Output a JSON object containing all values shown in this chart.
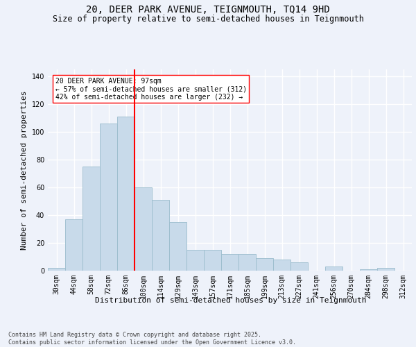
{
  "title_line1": "20, DEER PARK AVENUE, TEIGNMOUTH, TQ14 9HD",
  "title_line2": "Size of property relative to semi-detached houses in Teignmouth",
  "xlabel": "Distribution of semi-detached houses by size in Teignmouth",
  "ylabel": "Number of semi-detached properties",
  "categories": [
    "30sqm",
    "44sqm",
    "58sqm",
    "72sqm",
    "86sqm",
    "100sqm",
    "114sqm",
    "129sqm",
    "143sqm",
    "157sqm",
    "171sqm",
    "185sqm",
    "199sqm",
    "213sqm",
    "227sqm",
    "241sqm",
    "256sqm",
    "270sqm",
    "284sqm",
    "298sqm",
    "312sqm"
  ],
  "values": [
    2,
    37,
    75,
    106,
    111,
    60,
    51,
    35,
    15,
    15,
    12,
    12,
    9,
    8,
    6,
    0,
    3,
    0,
    1,
    2,
    0
  ],
  "bar_color": "#c8daea",
  "bar_edge_color": "#9abccc",
  "bar_width": 1.0,
  "vline_x": 4.5,
  "vline_color": "red",
  "vline_lw": 1.5,
  "ylim": [
    0,
    145
  ],
  "yticks": [
    0,
    20,
    40,
    60,
    80,
    100,
    120,
    140
  ],
  "annotation_text": "20 DEER PARK AVENUE: 97sqm\n← 57% of semi-detached houses are smaller (312)\n42% of semi-detached houses are larger (232) →",
  "annotation_box_color": "#ffffff",
  "annotation_box_edgecolor": "red",
  "bg_color": "#eef2fa",
  "grid_color": "#ffffff",
  "footnote": "Contains HM Land Registry data © Crown copyright and database right 2025.\nContains public sector information licensed under the Open Government Licence v3.0.",
  "title_fontsize": 10,
  "subtitle_fontsize": 8.5,
  "axis_label_fontsize": 8,
  "tick_fontsize": 7,
  "annotation_fontsize": 7,
  "footnote_fontsize": 6
}
